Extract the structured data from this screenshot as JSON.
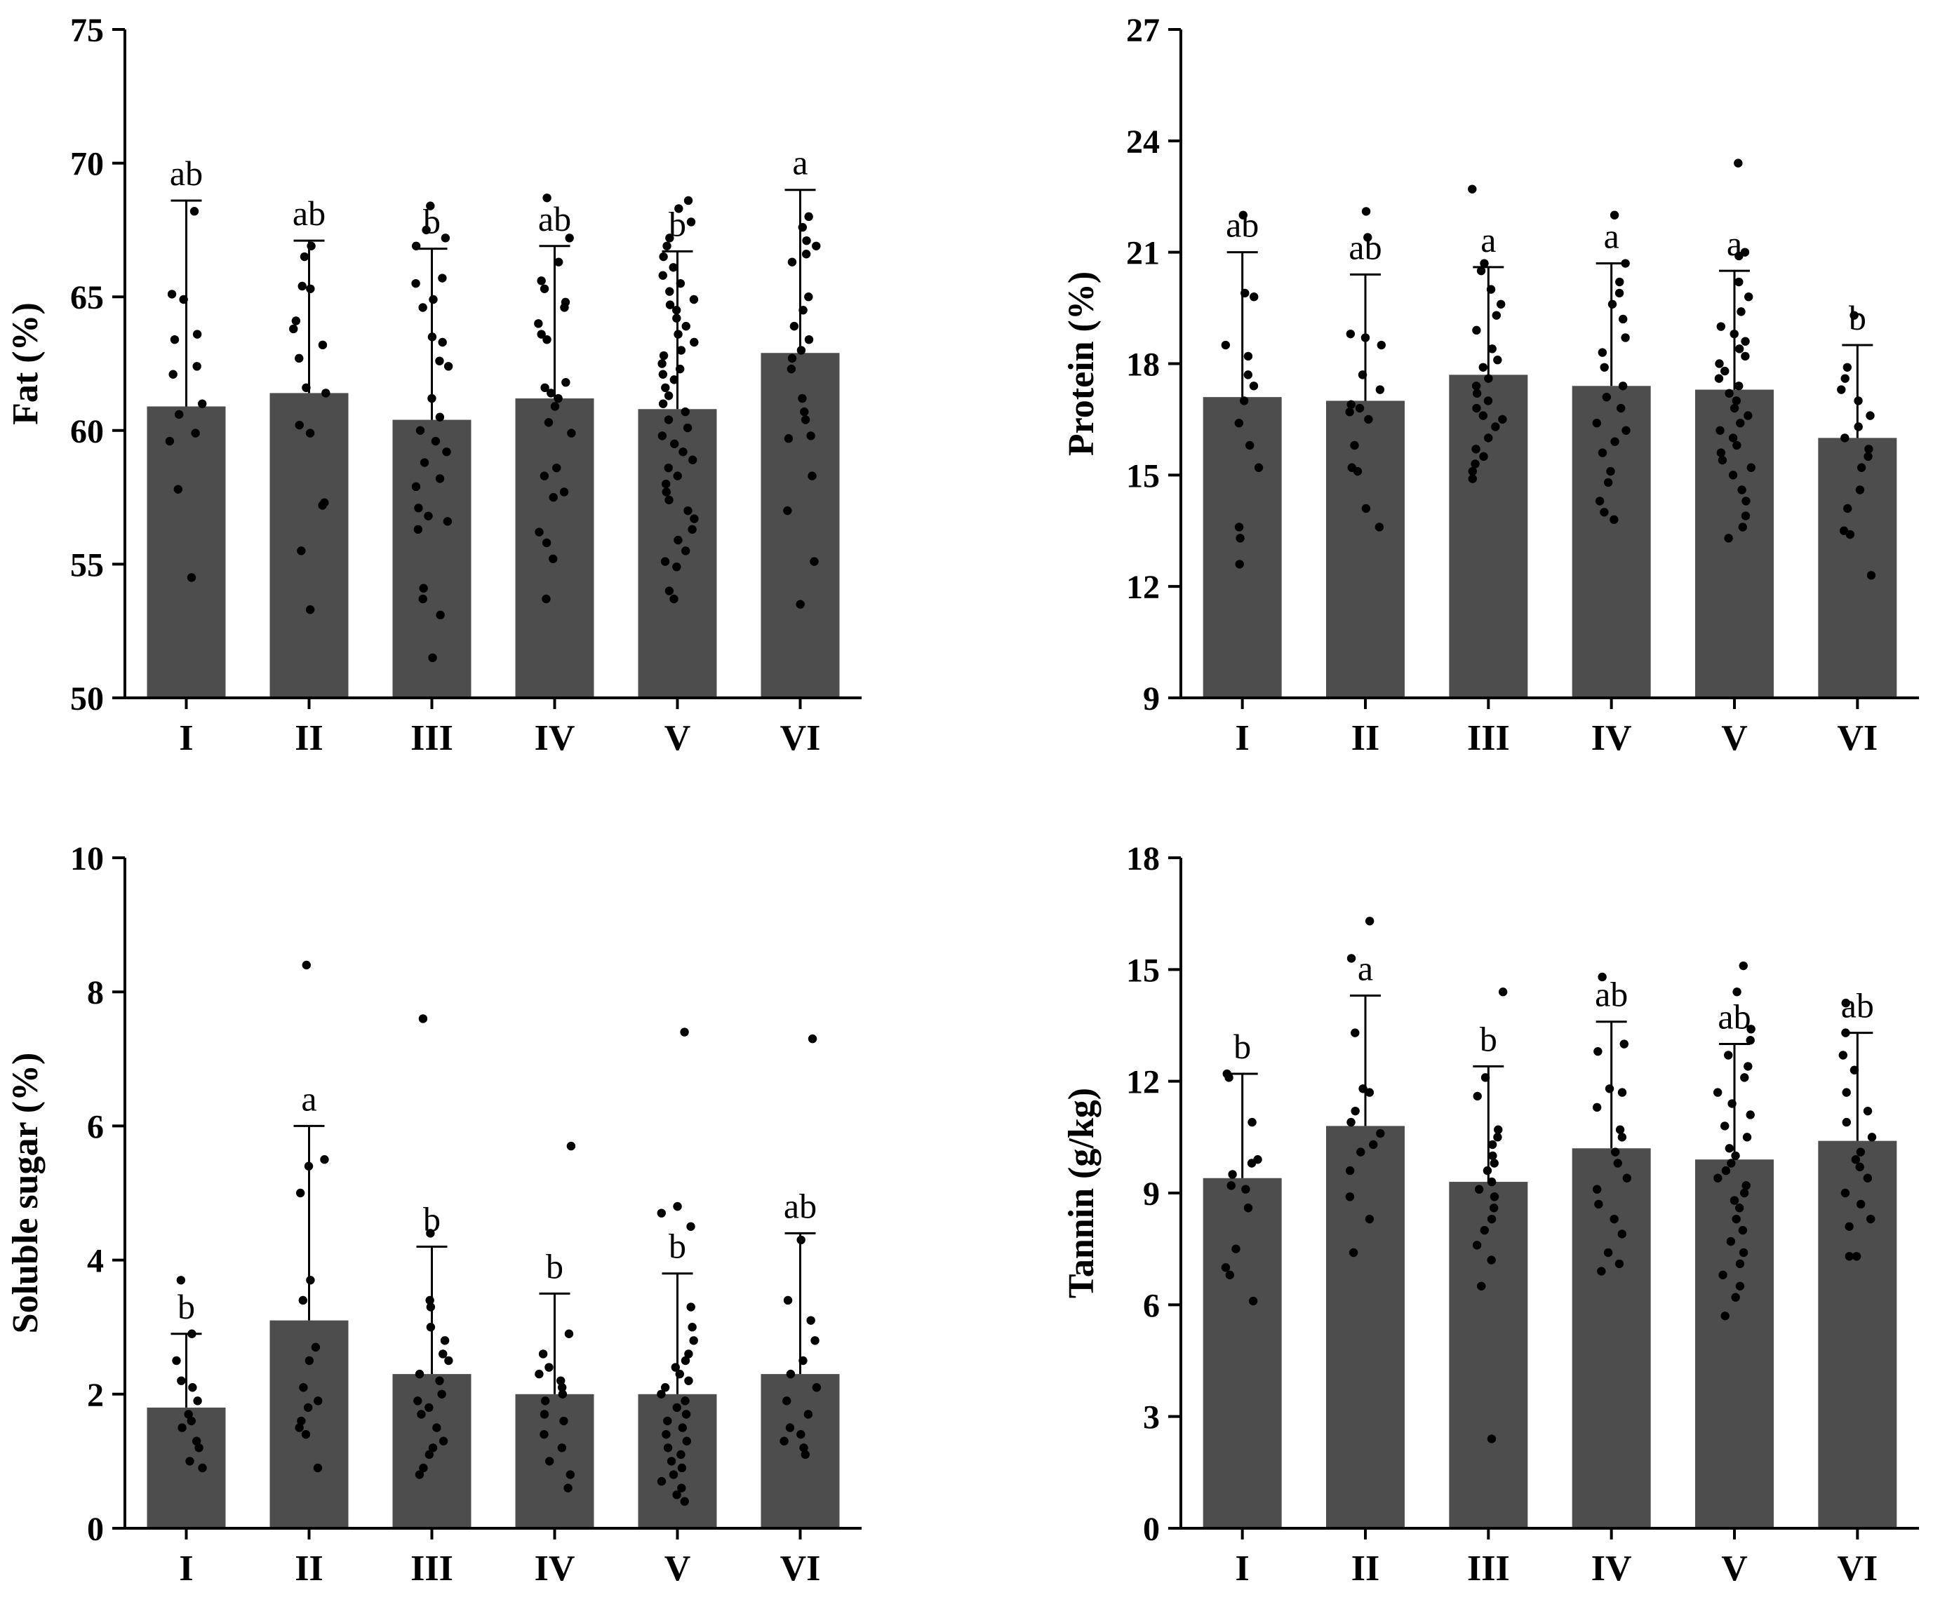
{
  "figure_title": "",
  "chart_data": [
    {
      "type": "bar",
      "panel": "top-left",
      "title": "",
      "xlabel": "",
      "ylabel": "Fat (%)",
      "ylim": [
        50,
        75
      ],
      "yticks": [
        "50",
        "55",
        "60",
        "65",
        "70",
        "75"
      ],
      "categories": [
        "I",
        "II",
        "III",
        "IV",
        "V",
        "VI"
      ],
      "values": [
        60.9,
        61.4,
        60.4,
        61.2,
        60.8,
        62.9
      ],
      "error_upper": [
        68.6,
        67.1,
        66.8,
        66.9,
        66.7,
        69.0
      ],
      "significance": [
        "ab",
        "ab",
        "b",
        "ab",
        "b",
        "a"
      ],
      "points": [
        [
          68.2,
          65.1,
          64.9,
          63.6,
          63.4,
          62.4,
          62.1,
          61.0,
          60.6,
          59.9,
          59.6,
          57.8,
          54.5
        ],
        [
          66.9,
          66.5,
          65.4,
          65.3,
          64.1,
          63.8,
          63.2,
          62.7,
          61.6,
          61.4,
          60.2,
          59.9,
          57.3,
          57.2,
          55.5,
          53.3
        ],
        [
          68.4,
          67.5,
          67.2,
          66.9,
          65.7,
          65.5,
          64.9,
          64.6,
          63.5,
          63.3,
          62.6,
          62.4,
          61.2,
          60.5,
          60.0,
          59.6,
          59.2,
          58.8,
          58.2,
          57.9,
          57.1,
          56.8,
          56.6,
          56.3,
          54.1,
          53.7,
          53.1,
          51.5
        ],
        [
          68.7,
          67.2,
          66.3,
          65.6,
          65.3,
          64.8,
          64.6,
          64.0,
          63.6,
          63.4,
          61.8,
          61.6,
          61.4,
          61.2,
          60.9,
          60.3,
          59.9,
          58.6,
          58.3,
          57.7,
          57.5,
          56.2,
          55.8,
          55.2,
          53.7
        ],
        [
          68.6,
          68.3,
          67.8,
          67.2,
          66.9,
          66.5,
          66.1,
          65.8,
          65.5,
          65.2,
          64.9,
          64.7,
          64.5,
          64.2,
          63.9,
          63.6,
          63.3,
          63.0,
          62.8,
          62.5,
          62.3,
          62.1,
          61.9,
          61.6,
          61.3,
          61.0,
          60.7,
          60.4,
          60.1,
          59.8,
          59.5,
          59.2,
          58.9,
          58.6,
          58.3,
          58.0,
          57.7,
          57.4,
          57.0,
          56.7,
          56.3,
          55.9,
          55.5,
          55.1,
          54.9,
          54.0,
          53.7
        ],
        [
          68.0,
          67.6,
          67.1,
          66.9,
          66.6,
          66.3,
          65.0,
          64.5,
          63.9,
          63.4,
          63.0,
          62.7,
          62.3,
          61.2,
          60.7,
          60.4,
          59.8,
          59.7,
          58.3,
          57.0,
          55.1,
          53.5
        ]
      ]
    },
    {
      "type": "bar",
      "panel": "top-right",
      "title": "",
      "xlabel": "",
      "ylabel": "Protein (%)",
      "ylim": [
        9,
        27
      ],
      "yticks": [
        "9",
        "12",
        "15",
        "18",
        "21",
        "24",
        "27"
      ],
      "categories": [
        "I",
        "II",
        "III",
        "IV",
        "V",
        "VI"
      ],
      "values": [
        17.1,
        17.0,
        17.7,
        17.4,
        17.3,
        16.0
      ],
      "error_upper": [
        21.0,
        20.4,
        20.6,
        20.7,
        20.5,
        18.5
      ],
      "significance": [
        "ab",
        "ab",
        "a",
        "a",
        "a",
        "b"
      ],
      "points": [
        [
          22.0,
          19.9,
          19.8,
          18.5,
          18.2,
          17.7,
          17.4,
          17.0,
          16.4,
          15.8,
          15.2,
          13.6,
          13.3,
          12.6
        ],
        [
          22.1,
          21.4,
          18.8,
          18.7,
          18.5,
          17.7,
          17.3,
          16.9,
          16.8,
          16.7,
          16.5,
          15.8,
          15.2,
          15.1,
          14.1,
          13.6
        ],
        [
          22.7,
          20.7,
          20.5,
          20.0,
          19.6,
          19.3,
          18.9,
          18.4,
          18.1,
          17.9,
          17.6,
          17.4,
          17.2,
          17.0,
          16.8,
          16.6,
          16.5,
          16.3,
          16.0,
          15.7,
          15.5,
          15.3,
          15.1,
          14.9
        ],
        [
          22.0,
          20.7,
          20.2,
          19.9,
          19.6,
          19.2,
          18.7,
          18.3,
          17.9,
          17.4,
          17.1,
          16.8,
          16.4,
          16.2,
          15.9,
          15.6,
          15.1,
          14.8,
          14.3,
          14.0,
          13.8
        ],
        [
          23.4,
          21.0,
          20.9,
          20.2,
          19.8,
          19.4,
          19.0,
          18.8,
          18.6,
          18.4,
          18.2,
          18.0,
          17.8,
          17.6,
          17.4,
          17.2,
          17.0,
          16.8,
          16.6,
          16.4,
          16.2,
          16.0,
          15.8,
          15.6,
          15.4,
          15.2,
          15.0,
          14.6,
          14.3,
          13.9,
          13.6,
          13.3
        ],
        [
          19.3,
          17.9,
          17.6,
          17.3,
          17.0,
          16.6,
          16.3,
          16.0,
          15.7,
          15.5,
          15.2,
          14.6,
          14.1,
          13.5,
          13.4,
          12.3
        ]
      ]
    },
    {
      "type": "bar",
      "panel": "bottom-left",
      "title": "",
      "xlabel": "",
      "ylabel": "Soluble sugar (%)",
      "ylim": [
        0,
        10
      ],
      "yticks": [
        "0",
        "2",
        "4",
        "6",
        "8",
        "10"
      ],
      "categories": [
        "I",
        "II",
        "III",
        "IV",
        "V",
        "VI"
      ],
      "values": [
        1.8,
        3.1,
        2.3,
        2.0,
        2.0,
        2.3
      ],
      "error_upper": [
        2.9,
        6.0,
        4.2,
        3.5,
        3.8,
        4.4
      ],
      "significance": [
        "b",
        "a",
        "b",
        "b",
        "b",
        "ab"
      ],
      "points": [
        [
          3.7,
          2.9,
          2.5,
          2.2,
          2.1,
          1.9,
          1.7,
          1.6,
          1.5,
          1.3,
          1.2,
          1.0,
          0.9
        ],
        [
          8.4,
          5.5,
          5.4,
          5.0,
          3.7,
          3.4,
          2.7,
          2.5,
          2.1,
          1.9,
          1.8,
          1.6,
          1.5,
          1.4,
          0.9
        ],
        [
          7.6,
          4.4,
          3.4,
          3.3,
          3.0,
          2.8,
          2.6,
          2.5,
          2.3,
          2.2,
          2.0,
          1.9,
          1.8,
          1.7,
          1.5,
          1.3,
          1.2,
          1.1,
          0.9,
          0.8
        ],
        [
          5.7,
          2.9,
          2.6,
          2.4,
          2.3,
          2.2,
          2.1,
          2.0,
          1.9,
          1.7,
          1.6,
          1.4,
          1.2,
          1.0,
          0.8,
          0.6
        ],
        [
          7.4,
          4.8,
          4.7,
          4.5,
          3.3,
          3.0,
          2.8,
          2.6,
          2.5,
          2.4,
          2.3,
          2.2,
          2.1,
          2.0,
          1.9,
          1.8,
          1.7,
          1.6,
          1.5,
          1.4,
          1.3,
          1.2,
          1.1,
          1.0,
          0.9,
          0.8,
          0.7,
          0.6,
          0.5,
          0.4
        ],
        [
          7.3,
          4.3,
          3.4,
          3.1,
          2.8,
          2.5,
          2.3,
          2.1,
          1.9,
          1.7,
          1.5,
          1.4,
          1.3,
          1.2,
          1.1
        ]
      ]
    },
    {
      "type": "bar",
      "panel": "bottom-right",
      "title": "",
      "xlabel": "",
      "ylabel": "Tannin (g/kg)",
      "ylim": [
        0,
        18
      ],
      "yticks": [
        "0",
        "3",
        "6",
        "9",
        "12",
        "15",
        "18"
      ],
      "categories": [
        "I",
        "II",
        "III",
        "IV",
        "V",
        "VI"
      ],
      "values": [
        9.4,
        10.8,
        9.3,
        10.2,
        9.9,
        10.4
      ],
      "error_upper": [
        12.2,
        14.3,
        12.4,
        13.6,
        13.0,
        13.3
      ],
      "significance": [
        "b",
        "a",
        "b",
        "ab",
        "ab",
        "ab"
      ],
      "points": [
        [
          12.2,
          12.1,
          10.9,
          9.9,
          9.8,
          9.5,
          9.2,
          9.1,
          8.6,
          7.5,
          7.0,
          6.8,
          6.1
        ],
        [
          16.3,
          15.3,
          13.3,
          11.8,
          11.7,
          11.2,
          10.9,
          10.6,
          10.3,
          10.1,
          9.6,
          8.9,
          8.3,
          7.4
        ],
        [
          14.4,
          12.1,
          11.6,
          10.7,
          10.5,
          10.3,
          10.0,
          9.8,
          9.6,
          9.3,
          9.1,
          8.9,
          8.6,
          8.3,
          8.0,
          7.6,
          7.2,
          6.5,
          2.4
        ],
        [
          14.8,
          13.0,
          12.8,
          11.8,
          11.7,
          11.3,
          10.7,
          10.5,
          10.1,
          9.8,
          9.4,
          9.1,
          8.7,
          8.3,
          7.9,
          7.4,
          7.1,
          6.9
        ],
        [
          15.1,
          14.4,
          13.4,
          13.1,
          12.7,
          12.4,
          12.1,
          11.7,
          11.4,
          11.1,
          10.8,
          10.5,
          10.2,
          10.0,
          9.8,
          9.6,
          9.4,
          9.2,
          9.0,
          8.8,
          8.6,
          8.3,
          8.0,
          7.7,
          7.4,
          7.1,
          6.8,
          6.5,
          6.2,
          5.7
        ],
        [
          14.1,
          13.3,
          12.7,
          12.3,
          11.7,
          11.2,
          10.9,
          10.5,
          10.1,
          9.9,
          9.7,
          9.4,
          9.0,
          8.7,
          8.3,
          8.1,
          7.3,
          7.3
        ]
      ]
    }
  ]
}
